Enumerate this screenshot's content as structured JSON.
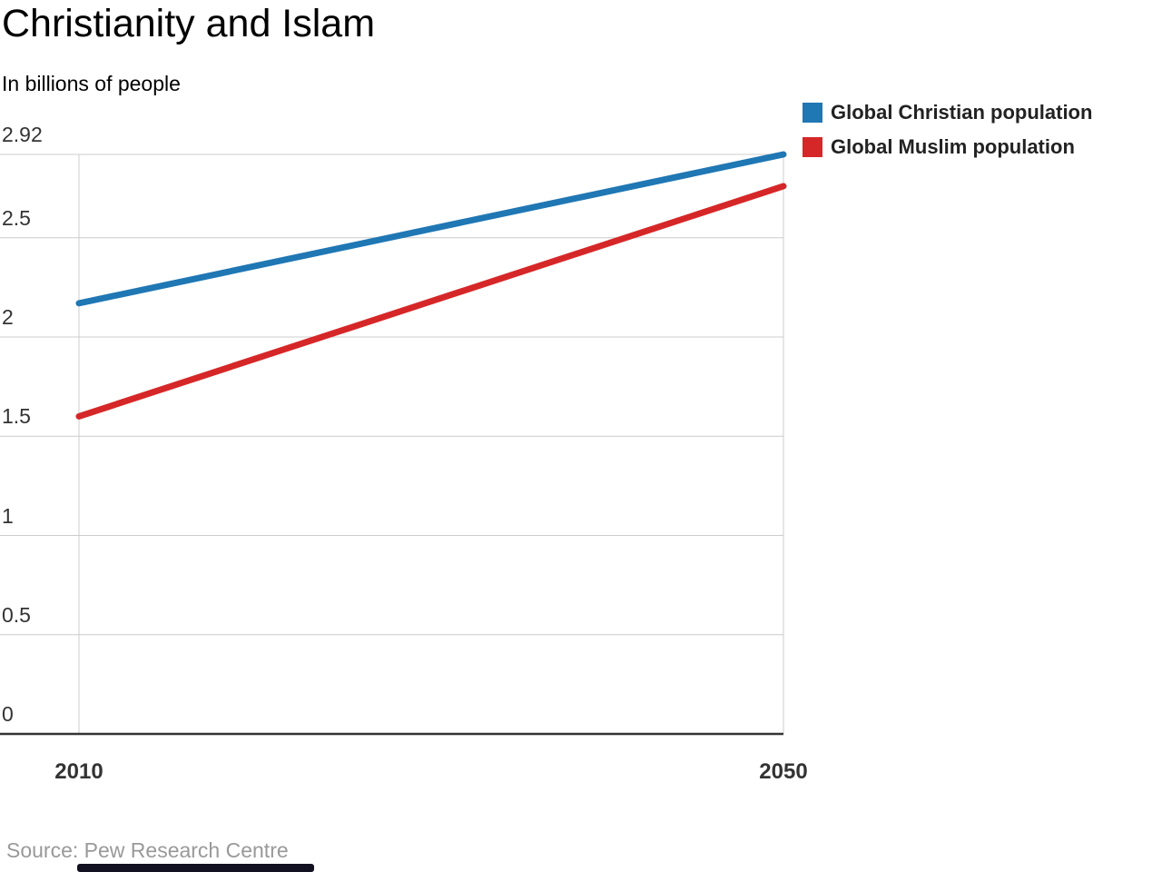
{
  "title": "Christianity and Islam",
  "subtitle": "In billions of people",
  "source": "Source: Pew Research Centre",
  "legend": {
    "items": [
      {
        "label": "Global Christian population",
        "color": "#1f77b4"
      },
      {
        "label": "Global Muslim population",
        "color": "#d62728"
      }
    ]
  },
  "chart_data": {
    "type": "line",
    "title": "Christianity and Islam",
    "subtitle": "In billions of people",
    "x": [
      2010,
      2050
    ],
    "x_tick_labels": [
      "2010",
      "2050"
    ],
    "series": [
      {
        "name": "Global Christian population",
        "color": "#1f77b4",
        "values": [
          2.17,
          2.92
        ]
      },
      {
        "name": "Global Muslim population",
        "color": "#d62728",
        "values": [
          1.6,
          2.76
        ]
      }
    ],
    "y_ticks": [
      0,
      0.5,
      1,
      1.5,
      2,
      2.5,
      2.92
    ],
    "y_tick_labels": [
      "0",
      "0.5",
      "1",
      "1.5",
      "2",
      "2.5",
      "2.92"
    ],
    "ylim": [
      0,
      2.92
    ],
    "grid": true,
    "grid_color": "#cccccc",
    "axis_color": "#333333",
    "legend_position": "top-right",
    "source": "Source: Pew Research Centre"
  }
}
